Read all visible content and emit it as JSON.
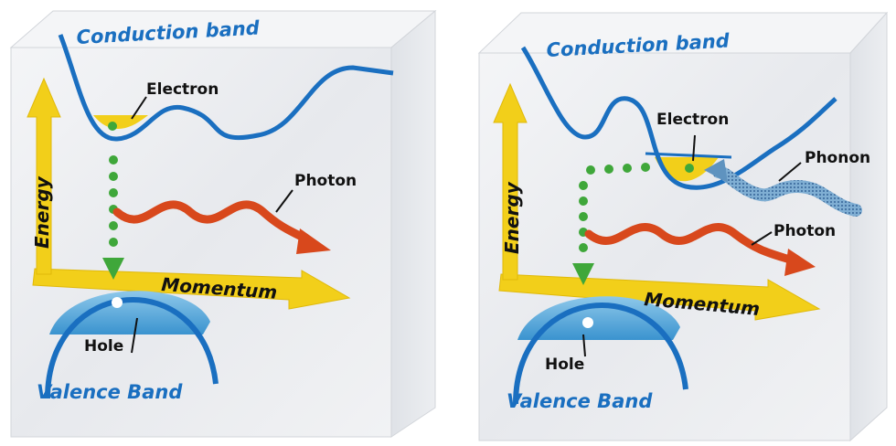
{
  "panels": [
    {
      "conduction_label": "Conduction band",
      "valence_label": "Valence Band",
      "electron_label": "Electron",
      "photon_label": "Photon",
      "hole_label": "Hole",
      "energy_label": "Energy",
      "momentum_label": "Momentum"
    },
    {
      "conduction_label": "Conduction band",
      "valence_label": "Valence Band",
      "electron_label": "Electron",
      "photon_label": "Photon",
      "phonon_label": "Phonon",
      "hole_label": "Hole",
      "energy_label": "Energy",
      "momentum_label": "Momentum"
    }
  ],
  "colors": {
    "band_line": "#1a6fc0",
    "photon": "#d8481c",
    "phonon": "#5f93bf",
    "axis": "#f2cf1a",
    "electron": "#3fa73a",
    "box": "#e6e8ec"
  }
}
